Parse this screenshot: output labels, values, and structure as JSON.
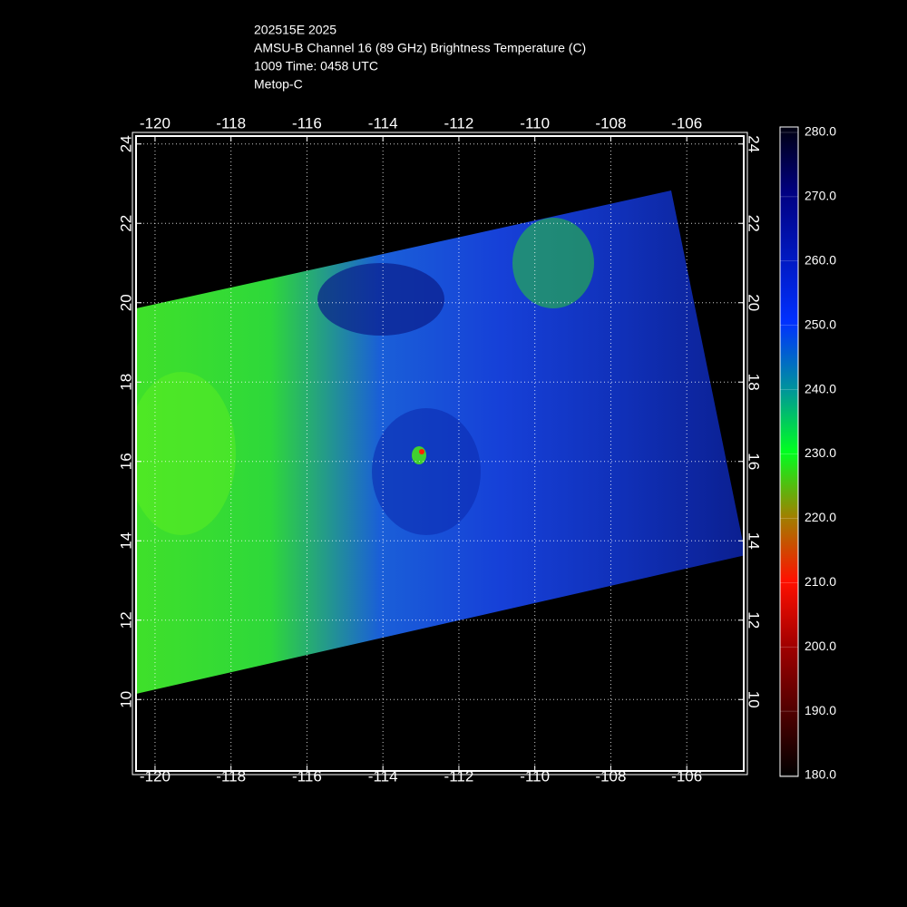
{
  "header": {
    "lines": [
      "202515E 2025",
      "AMSU-B Channel 16 (89 GHz) Brightness Temperature (C)",
      "1009 Time: 0458 UTC",
      "Metop-C"
    ]
  },
  "map": {
    "xlim": [
      -120.5,
      -104.5
    ],
    "ylim": [
      8.2,
      24.2
    ],
    "xticks": [
      -120,
      -118,
      -116,
      -114,
      -112,
      -110,
      -108,
      -106
    ],
    "yticks": [
      10,
      12,
      14,
      16,
      18,
      20,
      22,
      24
    ],
    "grid": true
  },
  "colorbar": {
    "lim": [
      180,
      280
    ],
    "ticks": [
      {
        "value": 180,
        "label": "180.0"
      },
      {
        "value": 190,
        "label": "190.0"
      },
      {
        "value": 200,
        "label": "200.0"
      },
      {
        "value": 210,
        "label": "210.0"
      },
      {
        "value": 220,
        "label": "220.0"
      },
      {
        "value": 230,
        "label": "230.0"
      },
      {
        "value": 240,
        "label": "240.0"
      },
      {
        "value": 250,
        "label": "250.0"
      },
      {
        "value": 260,
        "label": "260.0"
      },
      {
        "value": 270,
        "label": "270.0"
      },
      {
        "value": 280,
        "label": "280.0"
      }
    ]
  }
}
